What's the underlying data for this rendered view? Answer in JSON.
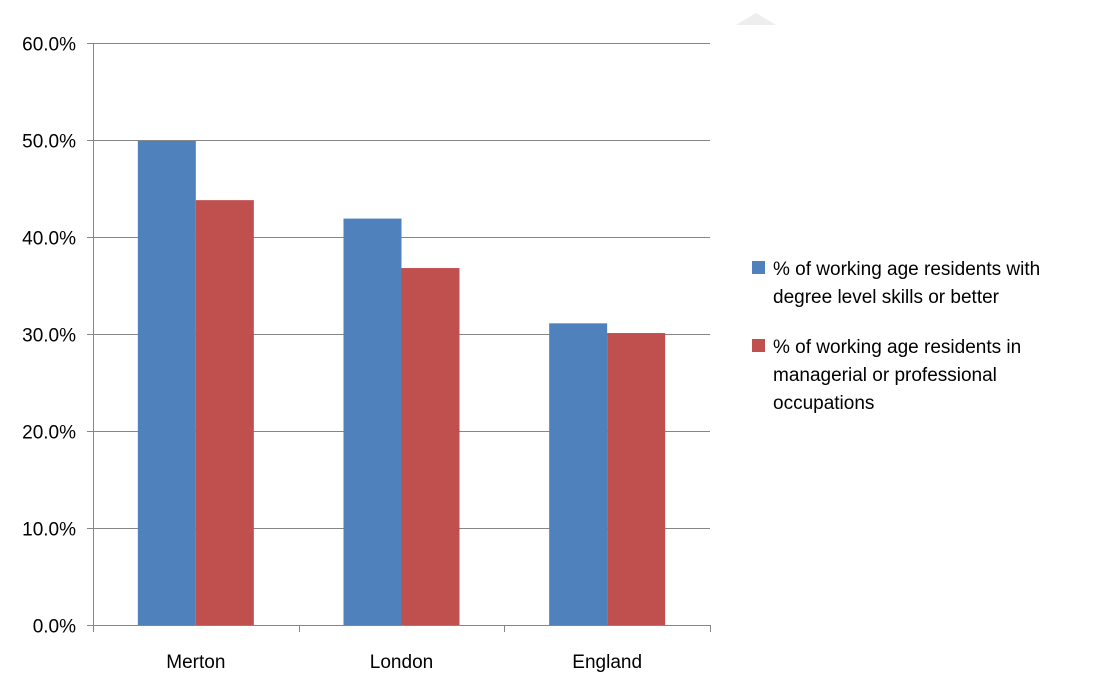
{
  "chart_data": {
    "type": "bar",
    "categories": [
      "Merton",
      "London",
      "England"
    ],
    "series": [
      {
        "name": "% of working age residents with degree level skills or better",
        "values": [
          49.9,
          41.9,
          31.1
        ],
        "color": "#4f81bd"
      },
      {
        "name": "% of working age residents in managerial or professional occupations",
        "values": [
          43.8,
          36.8,
          30.1
        ],
        "color": "#c0504d"
      }
    ],
    "ylim": [
      0,
      60
    ],
    "yticks": [
      0,
      10,
      20,
      30,
      40,
      50,
      60
    ],
    "ytick_labels": [
      "0.0%",
      "10.0%",
      "20.0%",
      "30.0%",
      "40.0%",
      "50.0%",
      "60.0%"
    ],
    "grid": true,
    "legend_position": "right",
    "xlabel": "",
    "ylabel": "",
    "title": ""
  }
}
